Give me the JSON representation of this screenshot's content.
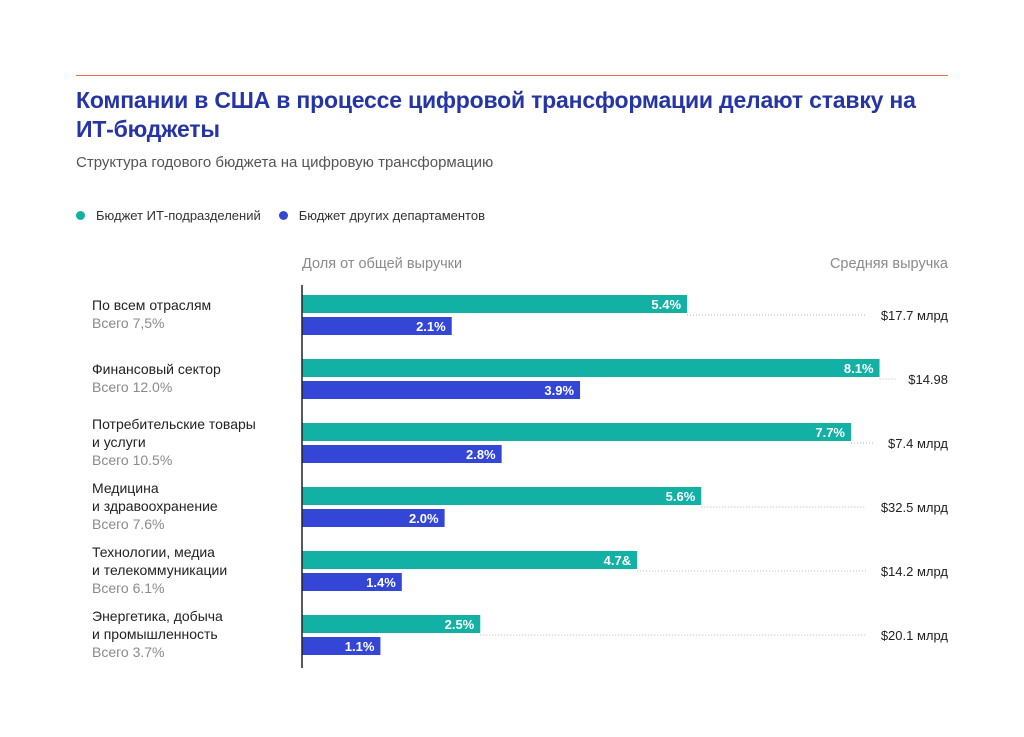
{
  "title": "Компании в США в процессе цифровой трансформации делают ставку на ИТ-бюджеты",
  "subtitle": "Структура годового бюджета на цифровую трансформацию",
  "colors": {
    "accent_line": "#f26b4f",
    "title": "#2635a6",
    "it": "#13b0a6",
    "other": "#3446d6"
  },
  "chart_data": {
    "type": "bar",
    "orientation": "horizontal",
    "xlabel": "Доля от общей выручки",
    "right_label": "Средняя выручка",
    "legend_position": "top-left",
    "grid": false,
    "categories": [
      {
        "name": [
          "По всем отраслям"
        ],
        "total": "Всего 7,5%",
        "revenue": "$17.7 млрд"
      },
      {
        "name": [
          "Финансовый сектор"
        ],
        "total": "Всего 12.0%",
        "revenue": "$14.98"
      },
      {
        "name": [
          "Потребительские товары",
          "и услуги"
        ],
        "total": "Всего 10.5%",
        "revenue": "$7.4 млрд"
      },
      {
        "name": [
          "Медицина",
          "и здравоохранение"
        ],
        "total": "Всего 7.6%",
        "revenue": "$32.5 млрд"
      },
      {
        "name": [
          "Технологии, медиа",
          "и телекоммуникации"
        ],
        "total": "Всего 6.1%",
        "revenue": "$14.2 млрд"
      },
      {
        "name": [
          "Энергетика, добыча",
          "и промышленность"
        ],
        "total": "Всего 3.7%",
        "revenue": "$20.1 млрд"
      }
    ],
    "series": [
      {
        "name": "Бюджет ИТ-подразделений",
        "color": "#13b0a6",
        "values": [
          5.4,
          8.1,
          7.7,
          5.6,
          4.7,
          2.5
        ],
        "labels": [
          "5.4%",
          "8.1%",
          "7.7%",
          "5.6%",
          "4.7&",
          "2.5%"
        ]
      },
      {
        "name": "Бюджет других департаментов",
        "color": "#3446d6",
        "values": [
          2.1,
          3.9,
          2.8,
          2.0,
          1.4,
          1.1
        ],
        "labels": [
          "2.1%",
          "3.9%",
          "2.8%",
          "2.0%",
          "1.4%",
          "1.1%"
        ]
      }
    ],
    "xlim": [
      0,
      8.5
    ]
  }
}
